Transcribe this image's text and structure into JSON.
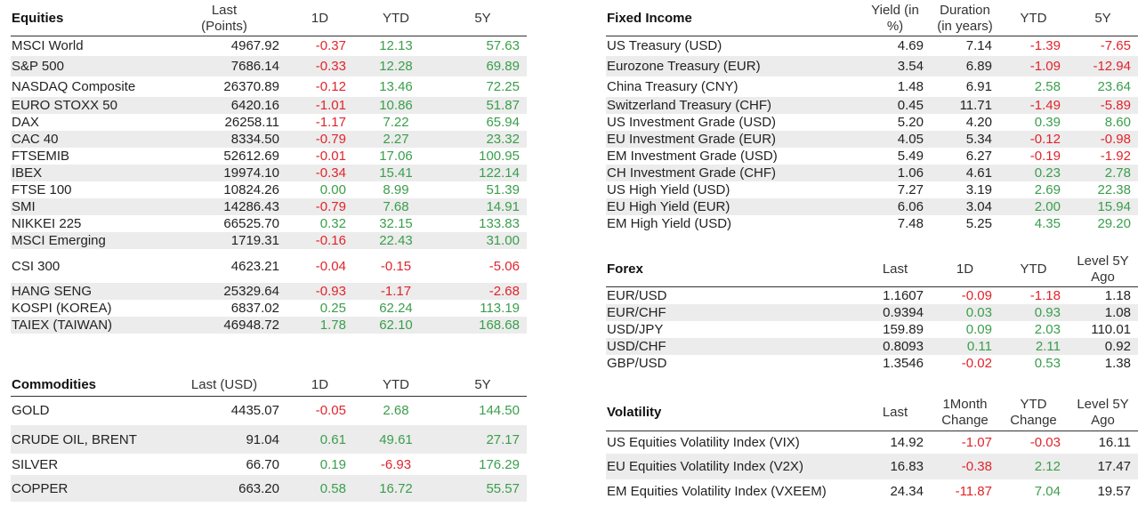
{
  "colors": {
    "positive": "#3a9e4b",
    "negative": "#e0242b",
    "stripe": "#ececec"
  },
  "equities": {
    "title": "Equities",
    "col_last": "Last",
    "col_last_sub": "(Points)",
    "col_1d": "1D",
    "col_ytd": "YTD",
    "col_5y": "5Y",
    "rows": [
      [
        "MSCI World",
        "4967.92",
        "-0.37",
        "12.13",
        "57.63"
      ],
      [
        "S&P 500",
        "7686.14",
        "-0.33",
        "12.28",
        "69.89"
      ],
      [
        "NASDAQ Composite",
        "26370.89",
        "-0.12",
        "13.46",
        "72.25"
      ],
      [
        "EURO STOXX 50",
        "6420.16",
        "-1.01",
        "10.86",
        "51.87"
      ],
      [
        "DAX",
        "26258.11",
        "-1.17",
        "7.22",
        "65.94"
      ],
      [
        "CAC 40",
        "8334.50",
        "-0.79",
        "2.27",
        "23.32"
      ],
      [
        "FTSEMIB",
        "52612.69",
        "-0.01",
        "17.06",
        "100.95"
      ],
      [
        "IBEX",
        "19974.10",
        "-0.34",
        "15.41",
        "122.14"
      ],
      [
        "FTSE 100",
        "10824.26",
        "0.00",
        "8.99",
        "51.39"
      ],
      [
        "SMI",
        "14286.43",
        "-0.79",
        "7.68",
        "14.91"
      ],
      [
        "NIKKEI 225",
        "66525.70",
        "0.32",
        "32.15",
        "133.83"
      ],
      [
        "MSCI Emerging",
        "1719.31",
        "-0.16",
        "22.43",
        "31.00"
      ],
      [
        "CSI 300",
        "4623.21",
        "-0.04",
        "-0.15",
        "-5.06"
      ],
      [
        "HANG SENG",
        "25329.64",
        "-0.93",
        "-1.17",
        "-2.68"
      ],
      [
        "KOSPI (KOREA)",
        "6837.02",
        "0.25",
        "62.24",
        "113.19"
      ],
      [
        "TAIEX (TAIWAN)",
        "46948.72",
        "1.78",
        "62.10",
        "168.68"
      ]
    ]
  },
  "commodities": {
    "title": "Commodities",
    "col_last": "Last (USD)",
    "col_1d": "1D",
    "col_ytd": "YTD",
    "col_5y": "5Y",
    "rows": [
      [
        "GOLD",
        "4435.07",
        "-0.05",
        "2.68",
        "144.50"
      ],
      [
        "CRUDE OIL, BRENT",
        "91.04",
        "0.61",
        "49.61",
        "27.17"
      ],
      [
        "SILVER",
        "66.70",
        "0.19",
        "-6.93",
        "176.29"
      ],
      [
        "COPPER",
        "663.20",
        "0.58",
        "16.72",
        "55.57"
      ]
    ]
  },
  "fixed_income": {
    "title": "Fixed Income",
    "col_yield": "Yield (in",
    "col_yield_sub": "%)",
    "col_duration": "Duration",
    "col_duration_sub": "(in years)",
    "col_ytd": "YTD",
    "col_5y": "5Y",
    "rows": [
      [
        "US Treasury (USD)",
        "4.69",
        "7.14",
        "-1.39",
        "-7.65"
      ],
      [
        "Eurozone Treasury (EUR)",
        "3.54",
        "6.89",
        "-1.09",
        "-12.94"
      ],
      [
        "China Treasury (CNY)",
        "1.48",
        "6.91",
        "2.58",
        "23.64"
      ],
      [
        "Switzerland Treasury (CHF)",
        "0.45",
        "11.71",
        "-1.49",
        "-5.89"
      ],
      [
        "US Investment Grade (USD)",
        "5.20",
        "4.20",
        "0.39",
        "8.60"
      ],
      [
        "EU Investment Grade (EUR)",
        "4.05",
        "5.34",
        "-0.12",
        "-0.98"
      ],
      [
        "EM Investment Grade (USD)",
        "5.49",
        "6.27",
        "-0.19",
        "-1.92"
      ],
      [
        "CH Investment Grade (CHF)",
        "1.06",
        "4.61",
        "0.23",
        "2.78"
      ],
      [
        "US High Yield (USD)",
        "7.27",
        "3.19",
        "2.69",
        "22.38"
      ],
      [
        "EU High Yield (EUR)",
        "6.06",
        "3.04",
        "2.00",
        "15.94"
      ],
      [
        "EM High Yield (USD)",
        "7.48",
        "5.25",
        "4.35",
        "29.20"
      ]
    ]
  },
  "forex": {
    "title": "Forex",
    "col_last": "Last",
    "col_1d": "1D",
    "col_ytd": "YTD",
    "col_level": "Level 5Y",
    "col_level_sub": "Ago",
    "rows": [
      [
        "EUR/USD",
        "1.1607",
        "-0.09",
        "-1.18",
        "1.18"
      ],
      [
        "EUR/CHF",
        "0.9394",
        "0.03",
        "0.93",
        "1.08"
      ],
      [
        "USD/JPY",
        "159.89",
        "0.09",
        "2.03",
        "110.01"
      ],
      [
        "USD/CHF",
        "0.8093",
        "0.11",
        "2.11",
        "0.92"
      ],
      [
        "GBP/USD",
        "1.3546",
        "-0.02",
        "0.53",
        "1.38"
      ]
    ]
  },
  "volatility": {
    "title": "Volatility",
    "col_last": "Last",
    "col_1m": "1Month",
    "col_1m_sub": "Change",
    "col_ytd": "YTD",
    "col_ytd_sub": "Change",
    "col_level": "Level 5Y",
    "col_level_sub": "Ago",
    "rows": [
      [
        "US Equities Volatility Index  (VIX)",
        "14.92",
        "-1.07",
        "-0.03",
        "16.11"
      ],
      [
        "EU Equities Volatility Index (V2X)",
        "16.83",
        "-0.38",
        "2.12",
        "17.47"
      ],
      [
        "EM Equities Volatility Index  (VXEEM)",
        "24.34",
        "-11.87",
        "7.04",
        "19.57"
      ]
    ]
  }
}
